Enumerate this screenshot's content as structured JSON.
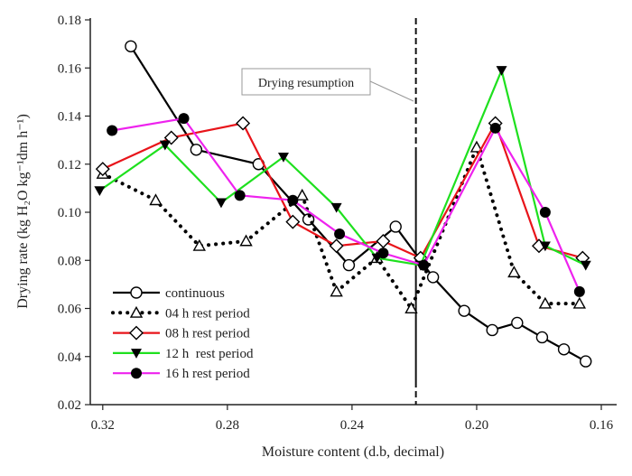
{
  "chart_data": {
    "type": "line",
    "xlabel": "Moisture content (d.b, decimal)",
    "ylabel": "Drying rate (kg H₂O kg⁻¹dm h⁻¹)",
    "xlim": [
      0.324,
      0.16
    ],
    "ylim": [
      0.02,
      0.18
    ],
    "x_reversed": true,
    "xticks": [
      0.32,
      0.28,
      0.24,
      0.2,
      0.16
    ],
    "xtick_labels": [
      "0.32",
      "0.28",
      "0.24",
      "0.20",
      "0.16"
    ],
    "yticks": [
      0.02,
      0.04,
      0.06,
      0.08,
      0.1,
      0.12,
      0.14,
      0.16,
      0.18
    ],
    "ytick_labels": [
      "0.02",
      "0.04",
      "0.06",
      "0.08",
      "0.10",
      "0.12",
      "0.14",
      "0.16",
      "0.18"
    ],
    "grid": false,
    "legend_position": "bottom-left",
    "annotation": {
      "text": "Drying resumption",
      "x": 0.2195
    },
    "series": [
      {
        "name": "continuous",
        "color": "#000000",
        "marker": "open-circle",
        "dash": "solid",
        "points": [
          [
            0.311,
            0.169
          ],
          [
            0.29,
            0.126
          ],
          [
            0.27,
            0.12
          ],
          [
            0.254,
            0.097
          ],
          [
            0.241,
            0.078
          ],
          [
            0.226,
            0.094
          ],
          [
            0.214,
            0.073
          ],
          [
            0.204,
            0.059
          ],
          [
            0.195,
            0.051
          ],
          [
            0.187,
            0.054
          ],
          [
            0.179,
            0.048
          ],
          [
            0.172,
            0.043
          ],
          [
            0.165,
            0.038
          ]
        ]
      },
      {
        "name": "04 h rest period",
        "color": "#000000",
        "marker": "open-triangle",
        "dash": "dotted",
        "points": [
          [
            0.32,
            0.116
          ],
          [
            0.303,
            0.105
          ],
          [
            0.289,
            0.086
          ],
          [
            0.274,
            0.088
          ],
          [
            0.256,
            0.107
          ],
          [
            0.245,
            0.067
          ],
          [
            0.232,
            0.081
          ],
          [
            0.221,
            0.06
          ],
          [
            0.2,
            0.127
          ],
          [
            0.188,
            0.075
          ],
          [
            0.178,
            0.062
          ],
          [
            0.167,
            0.062
          ]
        ]
      },
      {
        "name": "08 h rest period",
        "color": "#e8141a",
        "marker": "open-diamond",
        "dash": "solid",
        "points": [
          [
            0.32,
            0.118
          ],
          [
            0.298,
            0.131
          ],
          [
            0.275,
            0.137
          ],
          [
            0.259,
            0.096
          ],
          [
            0.245,
            0.086
          ],
          [
            0.23,
            0.088
          ],
          [
            0.218,
            0.081
          ],
          [
            0.194,
            0.137
          ],
          [
            0.18,
            0.086
          ],
          [
            0.166,
            0.081
          ]
        ]
      },
      {
        "name": "12 h  rest period",
        "color": "#1ee01e",
        "marker": "filled-down-triangle",
        "dash": "solid",
        "points": [
          [
            0.321,
            0.109
          ],
          [
            0.3,
            0.128
          ],
          [
            0.282,
            0.104
          ],
          [
            0.262,
            0.123
          ],
          [
            0.245,
            0.102
          ],
          [
            0.232,
            0.081
          ],
          [
            0.218,
            0.078
          ],
          [
            0.192,
            0.159
          ],
          [
            0.178,
            0.086
          ],
          [
            0.165,
            0.078
          ]
        ]
      },
      {
        "name": "16 h rest period",
        "color": "#ee22ee",
        "marker": "filled-circle",
        "dash": "solid",
        "points": [
          [
            0.317,
            0.134
          ],
          [
            0.294,
            0.139
          ],
          [
            0.276,
            0.107
          ],
          [
            0.259,
            0.105
          ],
          [
            0.244,
            0.091
          ],
          [
            0.23,
            0.083
          ],
          [
            0.217,
            0.078
          ],
          [
            0.194,
            0.135
          ],
          [
            0.178,
            0.1
          ],
          [
            0.167,
            0.067
          ]
        ]
      }
    ]
  }
}
